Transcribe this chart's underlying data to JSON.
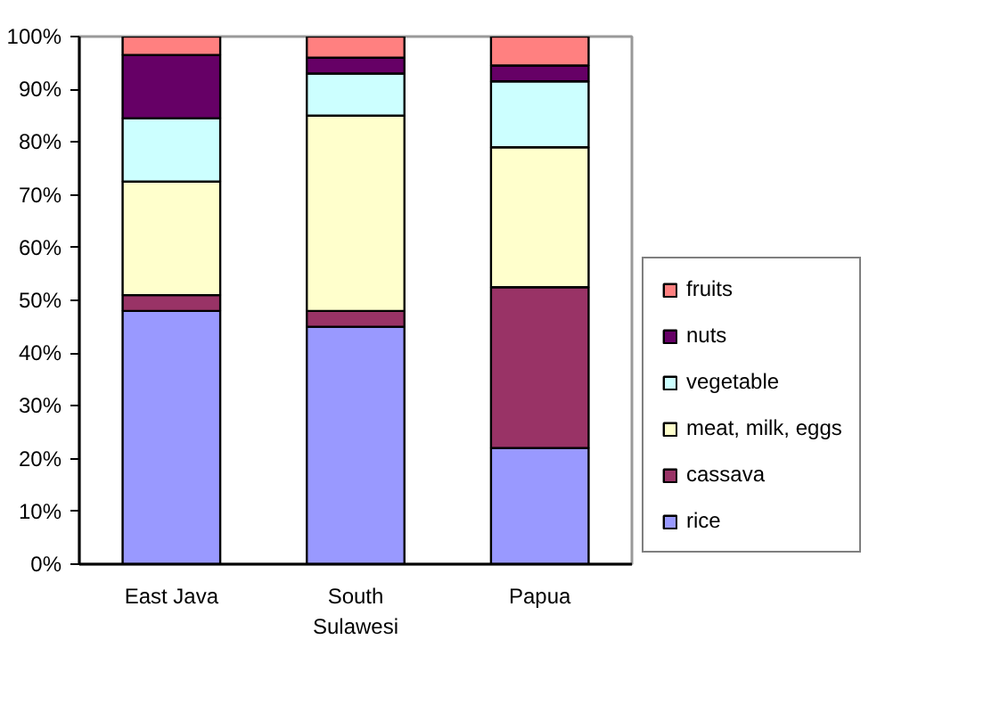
{
  "chart_data": {
    "type": "bar",
    "stacked": true,
    "categories": [
      "East Java",
      "South Sulawesi",
      "Papua"
    ],
    "series": [
      {
        "name": "rice",
        "color": "#9999ff",
        "values": [
          48,
          45,
          22
        ]
      },
      {
        "name": "cassava",
        "color": "#993366",
        "values": [
          3,
          3,
          30.5
        ]
      },
      {
        "name": "meat, milk, eggs",
        "color": "#ffffcc",
        "values": [
          21.5,
          37,
          26.5
        ]
      },
      {
        "name": "vegetable",
        "color": "#ccffff",
        "values": [
          12,
          8,
          12.5
        ]
      },
      {
        "name": "nuts",
        "color": "#660066",
        "values": [
          12,
          3,
          3
        ]
      },
      {
        "name": "fruits",
        "color": "#ff8080",
        "values": [
          3.5,
          4,
          5.5
        ]
      }
    ],
    "ylim": [
      0,
      100
    ],
    "yticks": [
      {
        "value": 0,
        "label": "0%"
      },
      {
        "value": 10,
        "label": "10%"
      },
      {
        "value": 20,
        "label": "20%"
      },
      {
        "value": 30,
        "label": "30%"
      },
      {
        "value": 40,
        "label": "40%"
      },
      {
        "value": 50,
        "label": "50%"
      },
      {
        "value": 60,
        "label": "60%"
      },
      {
        "value": 70,
        "label": "70%"
      },
      {
        "value": 80,
        "label": "80%"
      },
      {
        "value": 90,
        "label": "90%"
      },
      {
        "value": 100,
        "label": "100%"
      }
    ],
    "grid": false,
    "legend": "right"
  }
}
